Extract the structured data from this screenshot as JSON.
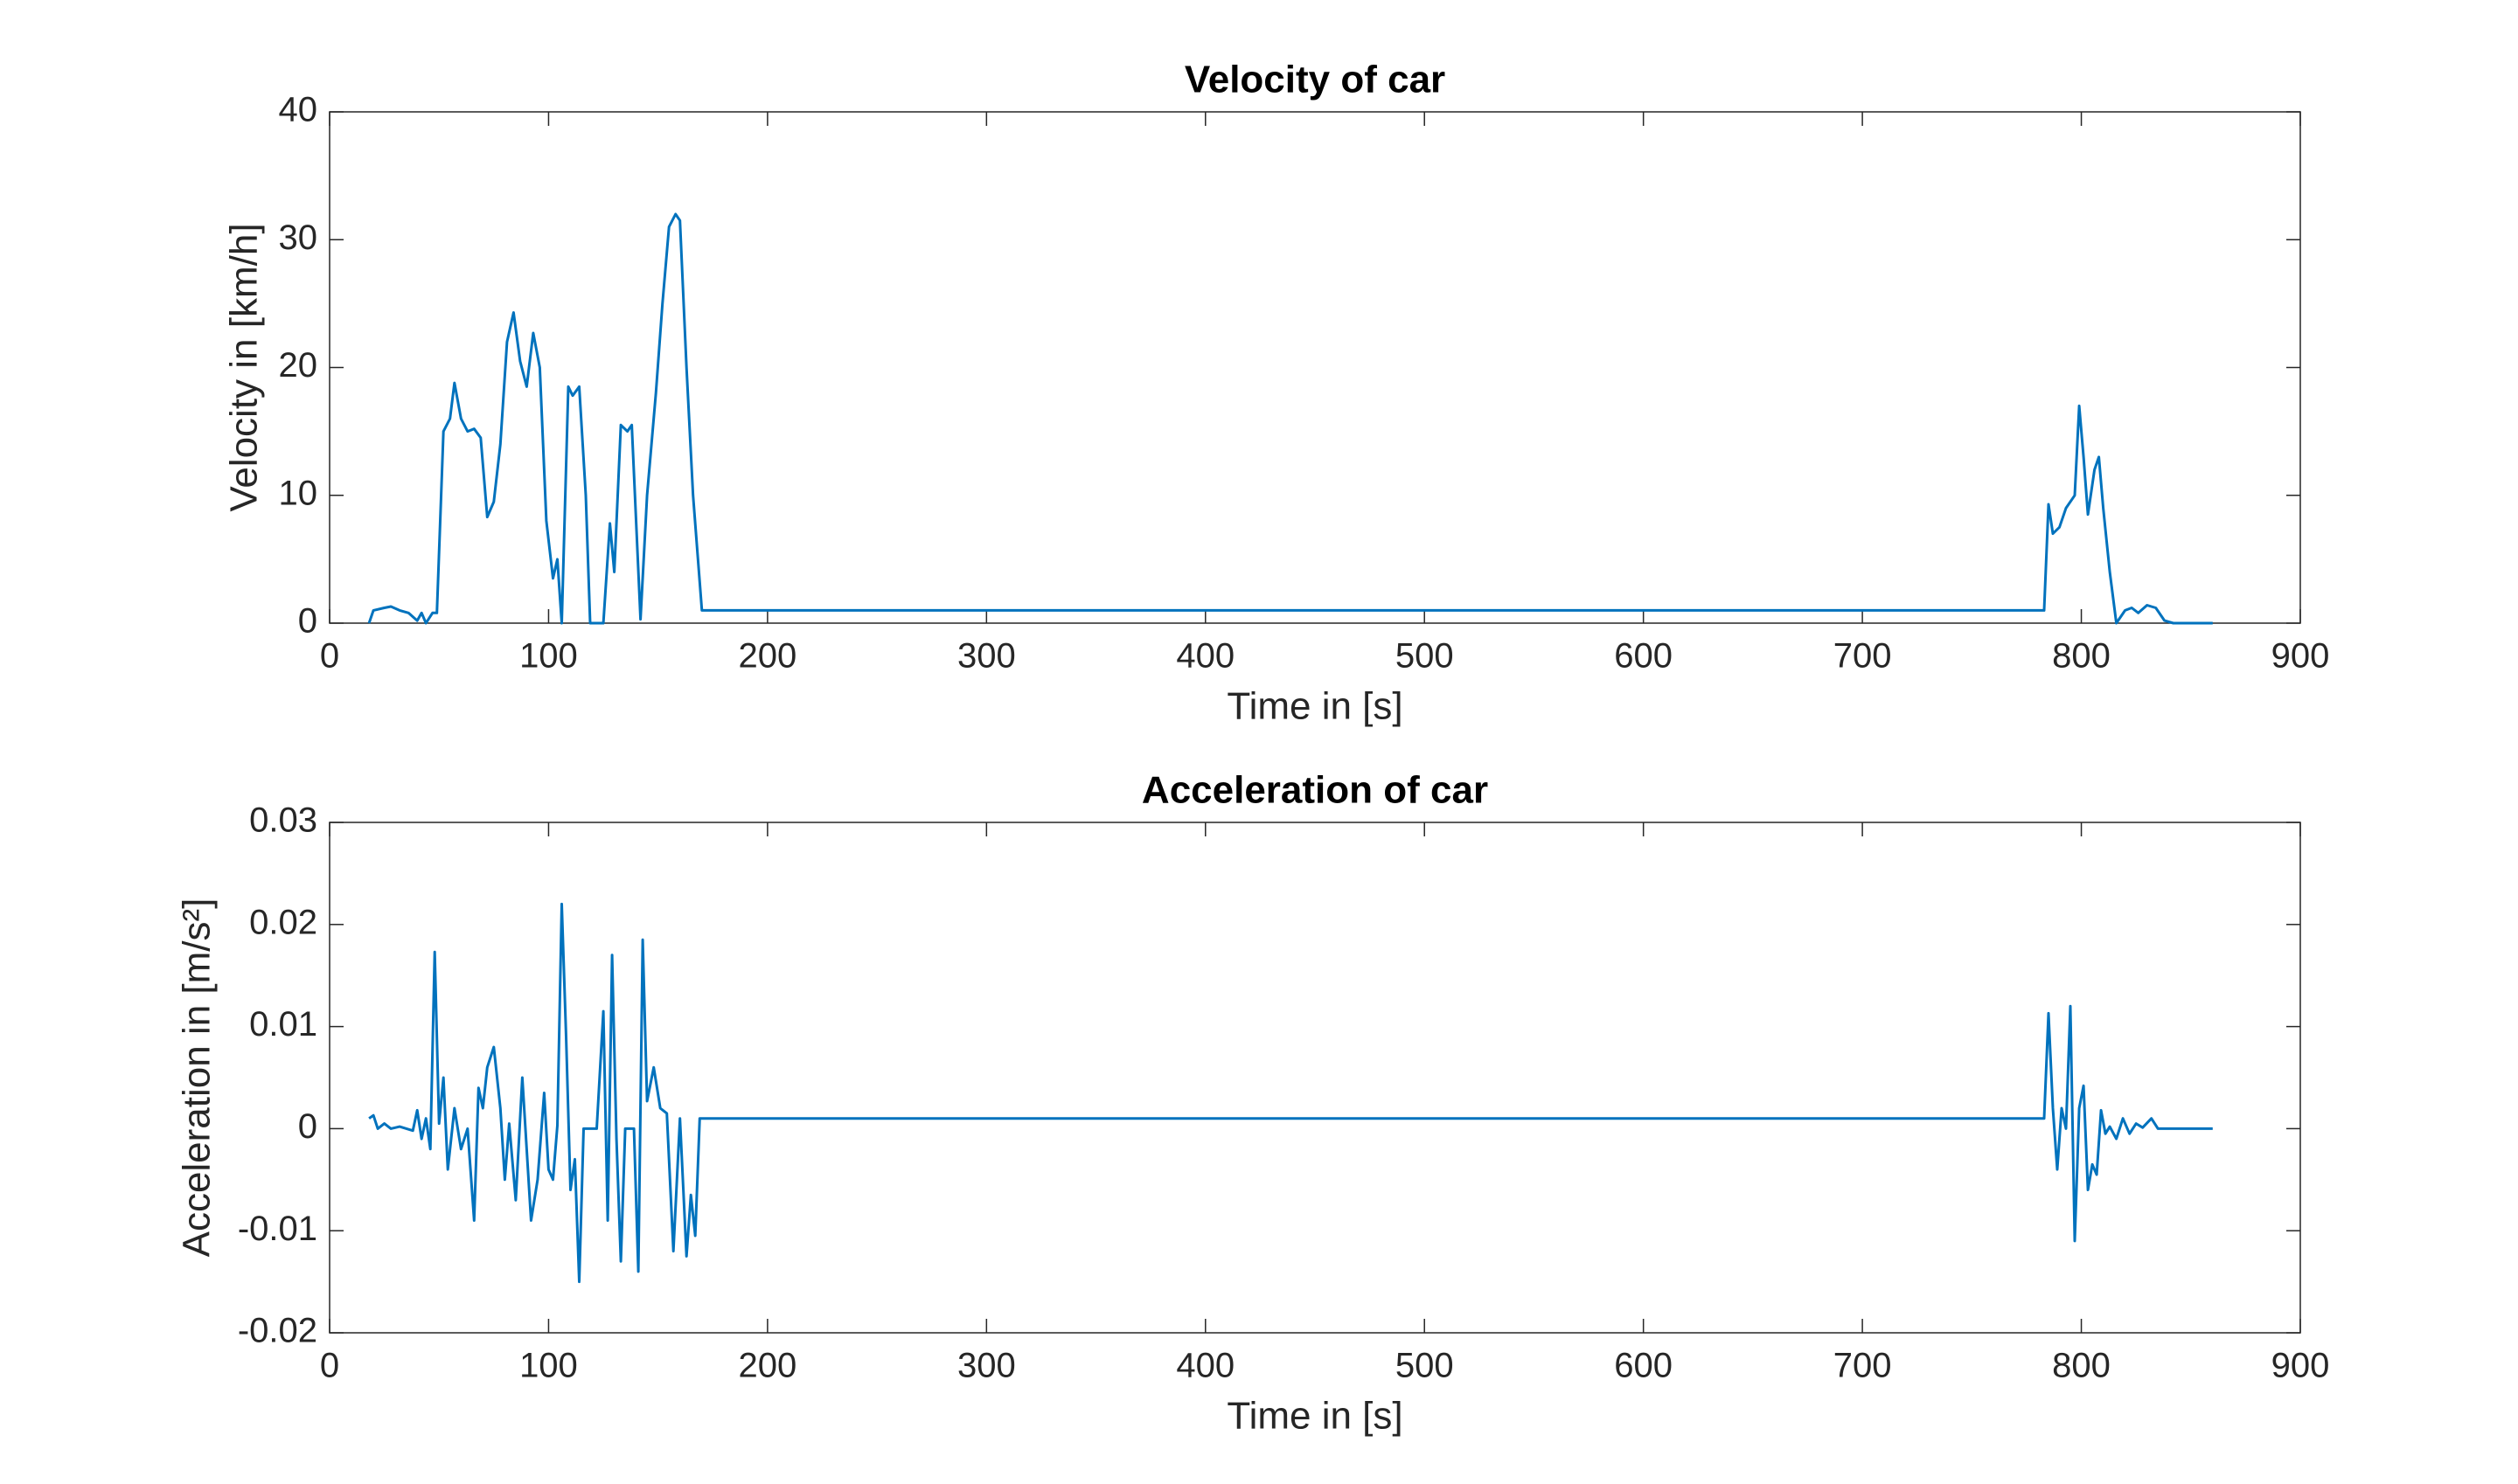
{
  "chart_data": [
    {
      "type": "line",
      "title": "Velocity of car",
      "xlabel": "Time in [s]",
      "ylabel": "Velocity in [km/h]",
      "color": "#0072bd",
      "x": [
        18,
        20,
        25,
        28,
        32,
        36,
        40,
        42,
        44,
        47,
        49,
        52,
        55,
        57,
        60,
        63,
        66,
        69,
        72,
        75,
        78,
        81,
        84,
        87,
        90,
        93,
        96,
        99,
        102,
        104,
        106,
        109,
        111,
        114,
        117,
        119,
        125,
        128,
        130,
        133,
        136,
        138,
        142,
        145,
        149,
        152,
        155,
        158,
        160,
        163,
        166,
        170,
        172,
        200,
        783,
        785,
        787,
        790,
        793,
        797,
        799,
        801,
        803,
        806,
        808,
        810,
        813,
        816,
        820,
        823,
        826,
        830,
        834,
        838,
        842,
        860
      ],
      "values": [
        0,
        1,
        1.2,
        1.3,
        1,
        0.8,
        0.2,
        0.8,
        0,
        0.8,
        0.8,
        15,
        16,
        18.8,
        16,
        15,
        15.2,
        14.5,
        8.3,
        9.5,
        14,
        22,
        24.3,
        20.5,
        18.5,
        22.7,
        20,
        8,
        3.5,
        5,
        0,
        18.5,
        17.8,
        18.5,
        10,
        0,
        0,
        7.8,
        4,
        15.5,
        15,
        15.5,
        0.3,
        10,
        18,
        25,
        31,
        32,
        31.5,
        20,
        10,
        1,
        1,
        1,
        1,
        9.3,
        7,
        7.5,
        9,
        10,
        17,
        13,
        8.5,
        12,
        13,
        9,
        4,
        0,
        1,
        1.2,
        0.8,
        1.4,
        1.2,
        0.2,
        0,
        0
      ],
      "xlim": [
        0,
        900
      ],
      "xticks": [
        0,
        100,
        200,
        300,
        400,
        500,
        600,
        700,
        800,
        900
      ],
      "ylim": [
        0,
        40
      ],
      "yticks": [
        0,
        10,
        20,
        30,
        40
      ]
    },
    {
      "type": "line",
      "title": "Acceleration of car",
      "xlabel": "Time in [s]",
      "ylabel": "Acceleration in [m/s²]",
      "color": "#0072bd",
      "x": [
        18,
        20,
        22,
        25,
        28,
        32,
        38,
        40,
        42,
        44,
        46,
        48,
        50,
        52,
        54,
        57,
        60,
        63,
        66,
        68,
        70,
        72,
        75,
        78,
        80,
        82,
        85,
        88,
        90,
        92,
        95,
        98,
        100,
        102,
        104,
        106,
        108,
        110,
        112,
        114,
        116,
        119,
        122,
        125,
        127,
        129,
        131,
        133,
        135,
        139,
        141,
        143,
        145,
        148,
        151,
        154,
        157,
        160,
        163,
        165,
        167,
        169,
        200,
        783,
        785,
        787,
        789,
        791,
        793,
        795,
        797,
        799,
        801,
        803,
        805,
        807,
        809,
        811,
        813,
        816,
        819,
        822,
        825,
        828,
        832,
        835,
        838,
        860
      ],
      "values": [
        0.001,
        0.0013,
        0,
        0.0005,
        0,
        0.0002,
        -0.0002,
        0.0018,
        -0.001,
        0.001,
        -0.002,
        0.0173,
        0.0005,
        0.005,
        -0.004,
        0.002,
        -0.002,
        0,
        -0.009,
        0.004,
        0.002,
        0.006,
        0.008,
        0.002,
        -0.005,
        0.0005,
        -0.007,
        0.005,
        -0.002,
        -0.009,
        -0.005,
        0.0035,
        -0.004,
        -0.005,
        0.0003,
        0.022,
        0.009,
        -0.006,
        -0.003,
        -0.015,
        0,
        0,
        0,
        0.0115,
        -0.009,
        0.017,
        -0.001,
        -0.013,
        0,
        0,
        -0.014,
        0.0185,
        0.0027,
        0.006,
        0.002,
        0.0015,
        -0.012,
        0.001,
        -0.0125,
        -0.0065,
        -0.0105,
        0.001,
        0.001,
        0.001,
        0.0113,
        0.002,
        -0.004,
        0.002,
        0,
        0.012,
        -0.011,
        0.002,
        0.0042,
        -0.006,
        -0.0035,
        -0.0045,
        0.0018,
        -0.0005,
        0.0002,
        -0.001,
        0.001,
        -0.0005,
        0.0005,
        0.0001,
        0.001,
        0,
        0,
        0
      ],
      "xlim": [
        0,
        900
      ],
      "xticks": [
        0,
        100,
        200,
        300,
        400,
        500,
        600,
        700,
        800,
        900
      ],
      "ylim": [
        -0.02,
        0.03
      ],
      "yticks": [
        -0.02,
        -0.01,
        0,
        0.01,
        0.02,
        0.03
      ]
    }
  ]
}
